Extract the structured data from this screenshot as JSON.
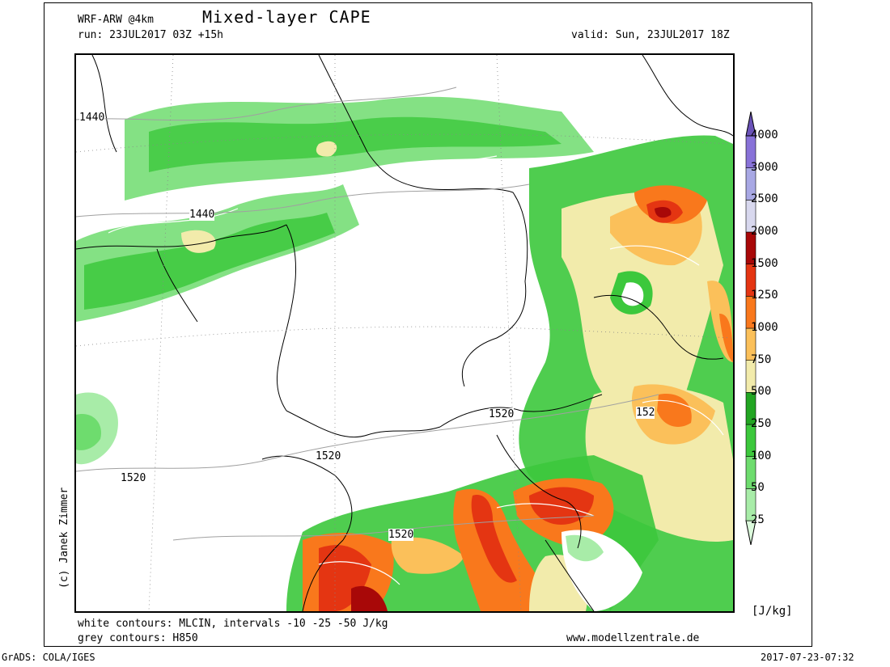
{
  "header": {
    "model": "WRF-ARW @4km",
    "title": "Mixed-layer CAPE",
    "run": "run: 23JUL2017 03Z +15h",
    "valid": "valid: Sun, 23JUL2017 18Z"
  },
  "colorbar": {
    "unit": "[J/kg]",
    "levels": [
      "25",
      "50",
      "100",
      "250",
      "500",
      "750",
      "1000",
      "1250",
      "1500",
      "2000",
      "2500",
      "3000",
      "4000"
    ],
    "colors": [
      "#dcfadc",
      "#a8eca8",
      "#6edc6e",
      "#3cc83c",
      "#22a522",
      "#f2ebab",
      "#fbc05a",
      "#f9781c",
      "#e43512",
      "#a80808",
      "#d8d8ee",
      "#a8a8e4",
      "#8872d8",
      "#6a52b8"
    ]
  },
  "contour_labels": {
    "h850": [
      "1440",
      "1440",
      "1520",
      "1520",
      "1520",
      "1520",
      "152"
    ]
  },
  "footer": {
    "white_contours": "white contours: MLCIN, intervals -10 -25 -50 J/kg",
    "grey_contours": "grey contours: H850",
    "website": "www.modellzentrale.de",
    "copyright": "(c) Janek Zimmer",
    "software": "GrADS: COLA/IGES",
    "timestamp": "2017-07-23-07:32"
  }
}
